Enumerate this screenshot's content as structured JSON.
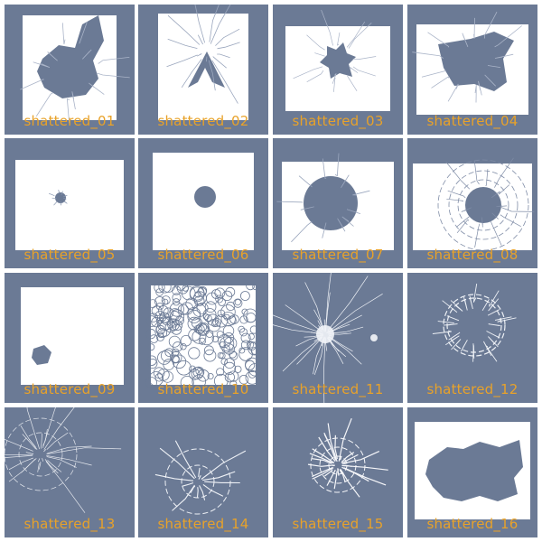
{
  "colors": {
    "tile_bg": "#6b7a95",
    "glass": "#ffffff",
    "label": "#e8a22a"
  },
  "textures": [
    {
      "label": "shattered_01",
      "icon": "shattered-glass-large-hole-icon"
    },
    {
      "label": "shattered_02",
      "icon": "shattered-glass-split-icon"
    },
    {
      "label": "shattered_03",
      "icon": "shattered-glass-small-hole-icon"
    },
    {
      "label": "shattered_04",
      "icon": "shattered-glass-wide-hole-icon"
    },
    {
      "label": "shattered_05",
      "icon": "bullet-hole-icon"
    },
    {
      "label": "shattered_06",
      "icon": "round-hole-icon"
    },
    {
      "label": "shattered_07",
      "icon": "big-round-hole-icon"
    },
    {
      "label": "shattered_08",
      "icon": "spiderweb-hole-icon"
    },
    {
      "label": "shattered_09",
      "icon": "corner-hole-icon"
    },
    {
      "label": "shattered_10",
      "icon": "crackle-pattern-icon"
    },
    {
      "label": "shattered_11",
      "icon": "impact-burst-icon"
    },
    {
      "label": "shattered_12",
      "icon": "crack-ring-icon"
    },
    {
      "label": "shattered_13",
      "icon": "web-cracks-icon"
    },
    {
      "label": "shattered_14",
      "icon": "radial-cracks-icon"
    },
    {
      "label": "shattered_15",
      "icon": "star-cracks-icon"
    },
    {
      "label": "shattered_16",
      "icon": "torn-pane-icon"
    }
  ]
}
